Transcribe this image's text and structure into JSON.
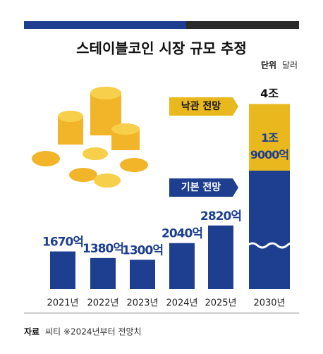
{
  "chart_data": {
    "type": "bar",
    "title": "스테이블코인 시장 규모 추정",
    "unit": {
      "label": "단위",
      "text": "달러"
    },
    "categories": [
      "2021년",
      "2022년",
      "2023년",
      "2024년",
      "2025년",
      "2030년"
    ],
    "series": [
      {
        "name": "기본 전망",
        "color": "#1e3f8f",
        "values": [
          1670,
          1380,
          1300,
          2040,
          2820,
          19000
        ],
        "value_labels": [
          "1670억",
          "1380억",
          "1300억",
          "2040억",
          "2820억",
          "1조 9000억"
        ]
      },
      {
        "name": "낙관 전망",
        "color": "#e8b81e",
        "values": [
          null,
          null,
          null,
          null,
          null,
          40000
        ],
        "value_labels": [
          null,
          null,
          null,
          null,
          null,
          "4조"
        ]
      }
    ],
    "source": {
      "label": "자료",
      "text": "씨티 ※2024년부터 전망치"
    }
  }
}
